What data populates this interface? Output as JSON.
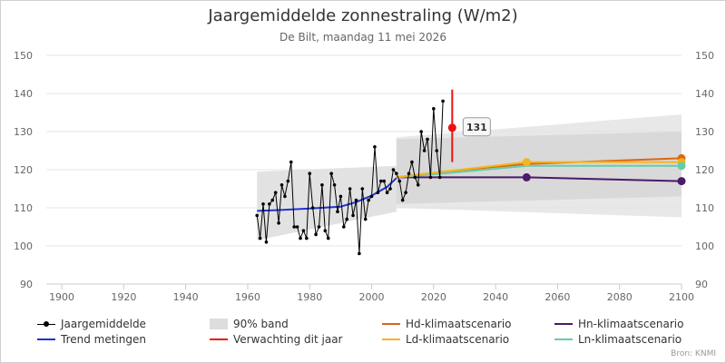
{
  "chart_data": {
    "type": "line",
    "title": "Jaargemiddelde zonnestraling (W/m2)",
    "subtitle": "De Bilt, maandag 11 mei 2026",
    "xlim": [
      1895,
      2100
    ],
    "ylim": [
      90,
      150
    ],
    "x_ticks": [
      1900,
      1920,
      1940,
      1960,
      1980,
      2000,
      2020,
      2040,
      2060,
      2080,
      2100
    ],
    "y_ticks": [
      90,
      100,
      110,
      120,
      130,
      140,
      150
    ],
    "grid": "horizontal",
    "series": [
      {
        "name": "Jaargemiddelde",
        "color": "#000000",
        "x": [
          1963,
          1964,
          1965,
          1966,
          1967,
          1968,
          1969,
          1970,
          1971,
          1972,
          1973,
          1974,
          1975,
          1976,
          1977,
          1978,
          1979,
          1980,
          1981,
          1982,
          1983,
          1984,
          1985,
          1986,
          1987,
          1988,
          1989,
          1990,
          1991,
          1992,
          1993,
          1994,
          1995,
          1996,
          1997,
          1998,
          1999,
          2000,
          2001,
          2002,
          2003,
          2004,
          2005,
          2006,
          2007,
          2008,
          2009,
          2010,
          2011,
          2012,
          2013,
          2014,
          2015,
          2016,
          2017,
          2018,
          2019,
          2020,
          2021,
          2022,
          2023
        ],
        "y": [
          108,
          102,
          111,
          101,
          111,
          112,
          114,
          106,
          116,
          113,
          117,
          122,
          105,
          105,
          102,
          104,
          102,
          119,
          110,
          103,
          105,
          116,
          104,
          102,
          119,
          116,
          109,
          113,
          105,
          107,
          115,
          108,
          112,
          98,
          115,
          107,
          112,
          113,
          126,
          114,
          117,
          117,
          114,
          115,
          120,
          119,
          117,
          112,
          114,
          119,
          122,
          118,
          116,
          130,
          125,
          128,
          118,
          136,
          125,
          118,
          138
        ]
      },
      {
        "name": "Trend metingen",
        "color": "#2233cc",
        "x": [
          1963,
          1970,
          1980,
          1990,
          1995,
          2000,
          2005,
          2008
        ],
        "y": [
          109.2,
          109.4,
          109.8,
          110.3,
          111.5,
          113.2,
          115.5,
          117.8
        ]
      },
      {
        "name": "Hd-klimaatscenario",
        "color": "#dd6611",
        "x": [
          2008,
          2023,
          2050,
          2100
        ],
        "y": [
          118,
          119.5,
          121.5,
          123
        ]
      },
      {
        "name": "Hn-klimaatscenario",
        "color": "#4a1a6b",
        "x": [
          2008,
          2023,
          2050,
          2100
        ],
        "y": [
          118,
          118,
          118,
          117
        ]
      },
      {
        "name": "Ld-klimaatscenario",
        "color": "#f5b520",
        "x": [
          2008,
          2023,
          2050,
          2100
        ],
        "y": [
          118,
          119.5,
          122,
          122
        ]
      },
      {
        "name": "Ln-klimaatscenario",
        "color": "#66ccaa",
        "x": [
          2008,
          2023,
          2050,
          2100
        ],
        "y": [
          118,
          119,
          121,
          121
        ]
      }
    ],
    "scenario_markers": [
      {
        "x": 2050,
        "y": 122,
        "color": "#f5b520"
      },
      {
        "x": 2050,
        "y": 118,
        "color": "#4a1a6b"
      },
      {
        "x": 2100,
        "y": 123,
        "color": "#dd6611"
      },
      {
        "x": 2100,
        "y": 122,
        "color": "#f5b520"
      },
      {
        "x": 2100,
        "y": 121,
        "color": "#66ccaa"
      },
      {
        "x": 2100,
        "y": 117,
        "color": "#4a1a6b"
      }
    ],
    "band_observed": {
      "name": "90% band",
      "x": [
        1963,
        2008
      ],
      "upper": [
        119.5,
        121
      ],
      "lower": [
        101.5,
        109
      ]
    },
    "band_scenario_outer": {
      "x": [
        2008,
        2100
      ],
      "upper": [
        128.5,
        134.5
      ],
      "lower": [
        110,
        107.5
      ]
    },
    "band_scenario_inner": {
      "x": [
        2008,
        2100
      ],
      "upper": [
        128,
        130
      ],
      "lower": [
        111,
        113
      ]
    },
    "forecast": {
      "name": "Verwachting dit jaar",
      "x": 2026,
      "value": 131,
      "low": 122,
      "high": 141,
      "color": "#ee1111",
      "label": "131"
    },
    "colors": {
      "grid": "#e6e6e6",
      "axis": "#cccccc",
      "band": "#e0e0e0",
      "band_dark": "#d3d3d3"
    }
  },
  "legend": [
    {
      "key": "jaargemiddelde",
      "label": "Jaargemiddelde",
      "color": "#000000",
      "symbol": "dotline"
    },
    {
      "key": "band",
      "label": "90% band",
      "color": "#dddddd",
      "symbol": "box"
    },
    {
      "key": "hd",
      "label": "Hd-klimaatscenario",
      "color": "#dd6611",
      "symbol": "line"
    },
    {
      "key": "hn",
      "label": "Hn-klimaatscenario",
      "color": "#4a1a6b",
      "symbol": "line"
    },
    {
      "key": "trend",
      "label": "Trend metingen",
      "color": "#2233cc",
      "symbol": "line"
    },
    {
      "key": "verwachting",
      "label": "Verwachting dit jaar",
      "color": "#ee1111",
      "symbol": "line"
    },
    {
      "key": "ld",
      "label": "Ld-klimaatscenario",
      "color": "#f5b520",
      "symbol": "line"
    },
    {
      "key": "ln",
      "label": "Ln-klimaatscenario",
      "color": "#66ccaa",
      "symbol": "line"
    }
  ],
  "source": "Bron: KNMI"
}
